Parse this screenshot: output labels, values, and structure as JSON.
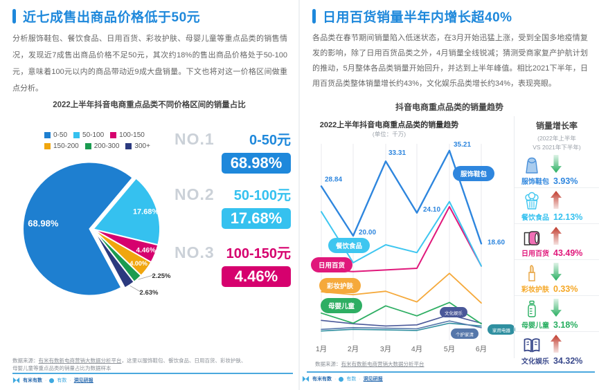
{
  "left_panel": {
    "title": "近七成售出商品价格低于50元",
    "paragraph": "分析服饰鞋包、餐饮食品、日用百货、彩妆护肤、母婴儿童等重点品类的销售情况，发现近7成售出商品价格不足50元，其次约18%的售出商品价格处于50-100元，意味着100元以内的商品带动近9成大盘销量。下文也将对这一价格区间做重点分析。",
    "rankings": [
      {
        "rank": "NO.1",
        "range": "0-50元",
        "value": "68.98%",
        "color": "#1E88DB"
      },
      {
        "rank": "NO.2",
        "range": "50-100元",
        "value": "17.68%",
        "color": "#35C1EF"
      },
      {
        "rank": "NO.3",
        "range": "100-150元",
        "value": "4.46%",
        "color": "#D6016E"
      }
    ],
    "source": {
      "prefix": "数据来源：",
      "platform": "有米有数新电商营销大数据分析平台",
      "rest": "，这里以服饰鞋包、餐饮食品、日用百货、彩妆护肤、",
      "line2": "母婴儿童等重点品类的销量占比为数据样本"
    }
  },
  "right_panel": {
    "title": "日用百货销量半年内增长超40%",
    "paragraph": "各品类在春节期间销量陷入低迷状态，在3月开始迅猛上涨，受到全国多地疫情复发的影响，除了日用百货品类之外，4月销量全线锐减；猜测受商家复产护航计划的推动，5月整体各品类销量开始回升，并达到上半年峰值。相比2021下半年，日用百货品类整体销量增长约43%，文化娱乐品类增长约34%，表现亮眼。",
    "section_heading": "抖音电商重点品类的销量趋势",
    "source": {
      "prefix": "数据来源：",
      "platform": "有米有数新电商营销大数据分析平台"
    },
    "growth": {
      "title": "销量增长率",
      "subtitle_line1": "(2022年上半年",
      "subtitle_line2": "VS  2021年下半年)",
      "items": [
        {
          "label": "服饰鞋包",
          "value": "3.93%",
          "direction": "down",
          "color": "#2E86DE"
        },
        {
          "label": "餐饮食品",
          "value": "12.13%",
          "direction": "up",
          "color": "#35C1EF"
        },
        {
          "label": "日用百货",
          "value": "43.49%",
          "direction": "up",
          "color": "#E0187B"
        },
        {
          "label": "彩妆护肤",
          "value": "0.33%",
          "direction": "down",
          "color": "#F5A623"
        },
        {
          "label": "母婴儿童",
          "value": "3.18%",
          "direction": "down",
          "color": "#27AE60"
        },
        {
          "label": "文化娱乐",
          "value": "34.32%",
          "direction": "up",
          "color": "#3B4A8C"
        }
      ]
    }
  },
  "footer_brands": {
    "brand1": "有米有数",
    "brand2": "有数",
    "brand3": "洞见研报"
  },
  "status_colors": {
    "up": "#C0392B",
    "down": "#27AE60",
    "accent": "#1E88DB"
  },
  "chart_data": [
    {
      "type": "pie",
      "title": "2022上半年抖音电商重点品类不同价格区间的销量占比",
      "labels": [
        "0-50",
        "50-100",
        "100-150",
        "150-200",
        "200-300",
        "300+"
      ],
      "values": [
        68.98,
        17.68,
        4.46,
        4.0,
        2.25,
        2.63
      ],
      "colors": [
        "#1E7FD0",
        "#35C1EF",
        "#D6016E",
        "#F0A60E",
        "#1A9B50",
        "#2B3A7F"
      ],
      "legend_position": "top",
      "start_angle_deg": 40
    },
    {
      "type": "line",
      "title": "2022上半年抖音电商重点品类的销量趋势",
      "subtitle": "(单位：千万)",
      "unit": "千万",
      "x": [
        "1月",
        "2月",
        "3月",
        "4月",
        "5月",
        "6月"
      ],
      "ylim": [
        0,
        40
      ],
      "grid": "vertical-only",
      "series": [
        {
          "name": "服饰鞋包",
          "color": "#2E86DE",
          "values": [
            28.84,
            20.0,
            33.31,
            24.1,
            35.21,
            18.6
          ],
          "labeled": true
        },
        {
          "name": "餐饮食品",
          "color": "#3EC6F0",
          "values": [
            24.3,
            15.2,
            18.4,
            17.0,
            26.1,
            14.6
          ]
        },
        {
          "name": "日用百货",
          "color": "#E0187B",
          "values": [
            14.0,
            13.6,
            13.9,
            14.2,
            25.2,
            14.6
          ]
        },
        {
          "name": "彩妆护肤",
          "color": "#F5A93B",
          "values": [
            10.0,
            9.5,
            10.1,
            8.2,
            13.3,
            8.0
          ]
        },
        {
          "name": "母婴儿童",
          "color": "#2EAE63",
          "values": [
            6.2,
            4.4,
            7.5,
            5.7,
            8.1,
            4.3
          ]
        },
        {
          "name": "文化娱乐",
          "color": "#4A5899",
          "values": [
            4.9,
            4.3,
            3.9,
            4.1,
            5.9,
            4.4
          ]
        },
        {
          "name": "个护家清",
          "color": "#5577AA",
          "values": [
            3.3,
            3.6,
            3.5,
            3.4,
            4.8,
            3.6
          ]
        },
        {
          "name": "家用电器",
          "color": "#2F8FA0",
          "values": [
            3.0,
            3.3,
            3.2,
            3.1,
            4.4,
            3.9
          ]
        }
      ]
    }
  ]
}
